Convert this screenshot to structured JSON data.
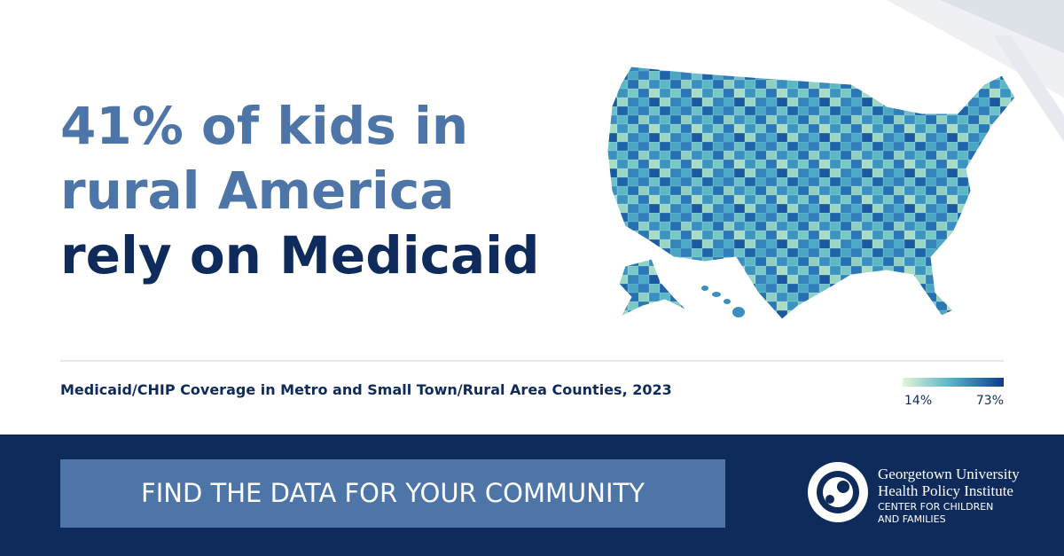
{
  "headline": {
    "lines": [
      "41% of kids in",
      "rural America",
      "rely on Medicaid"
    ]
  },
  "map": {
    "caption": "Medicaid/CHIP Coverage in Metro and Small Town/Rural Area Counties, 2023",
    "legend": {
      "min_label": "14%",
      "max_label": "73%"
    }
  },
  "footer": {
    "button": "FIND THE DATA FOR YOUR COMMUNITY",
    "logo": {
      "line1": "Georgetown University",
      "line2": "Health Policy Institute",
      "line3": "CENTER FOR CHILDREN",
      "line4": "AND FAMILIES"
    }
  }
}
